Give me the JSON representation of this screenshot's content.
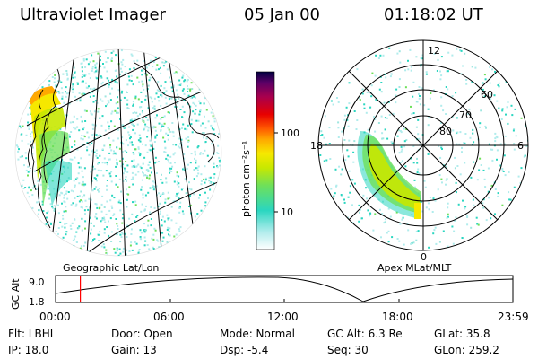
{
  "header": {
    "title": "Ultraviolet Imager",
    "date": "05 Jan 00",
    "time": "01:18:02 UT"
  },
  "colorbar": {
    "unit_label": "photon cm⁻²s⁻¹",
    "tick_labels": [
      "100",
      "10"
    ]
  },
  "left_panel": {
    "caption": "Geographic Lat/Lon"
  },
  "right_panel": {
    "caption": "Apex MLat/MLT",
    "mlt_labels": {
      "top": "12",
      "left": "18",
      "right": "6",
      "bottom": "0"
    },
    "mlat_labels": [
      "60",
      "70",
      "80"
    ]
  },
  "timeline": {
    "axis_label": "GC Alt",
    "y_ticks": [
      "9.0",
      "1.8"
    ],
    "x_ticks": [
      "00:00",
      "06:00",
      "12:00",
      "18:00",
      "23:59"
    ],
    "marker_time": "01:18"
  },
  "status": {
    "filter": "Flt: LBHL",
    "ip": "IP: 18.0",
    "door": "Door: Open",
    "gain": "Gain: 13",
    "mode": "Mode: Normal",
    "dsp": "Dsp:   -5.4",
    "gc_alt": "GC Alt: 6.3 Re",
    "seq": "Seq: 30",
    "glat": "GLat:  35.8",
    "glon": "GLon: 259.2"
  },
  "colors": {
    "colormap": [
      "#ffffff",
      "#b0ecec",
      "#2ad6c0",
      "#6ee05a",
      "#c8e800",
      "#f6e800",
      "#ffa800",
      "#ff5a00",
      "#e80000",
      "#a8004e",
      "#5a0066",
      "#000040"
    ],
    "timeline_marker": "#ff0000"
  }
}
